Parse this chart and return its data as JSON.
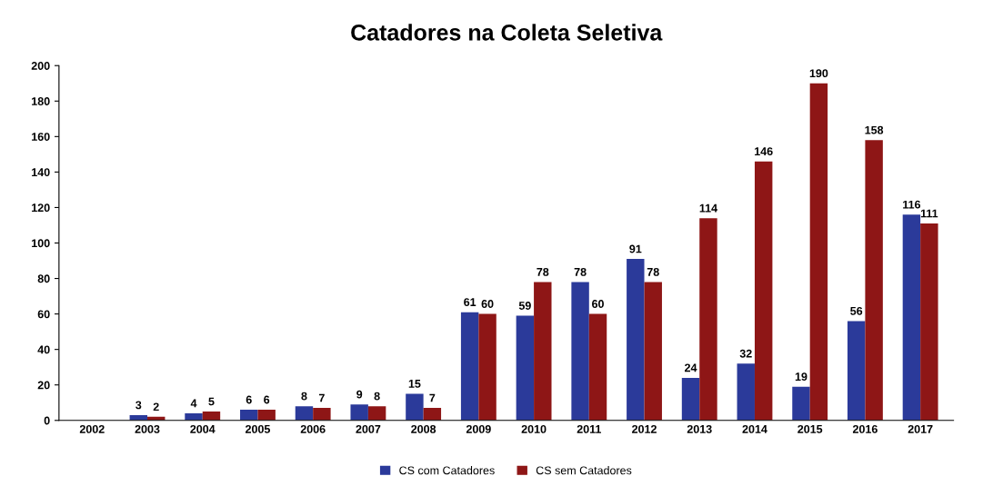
{
  "chart_data": {
    "type": "bar",
    "title": "Catadores na Coleta Seletiva",
    "categories": [
      "2002",
      "2003",
      "2004",
      "2005",
      "2006",
      "2007",
      "2008",
      "2009",
      "2010",
      "2011",
      "2012",
      "2013",
      "2014",
      "2015",
      "2016",
      "2017"
    ],
    "series": [
      {
        "name": "CS com Catadores",
        "color": "#2b3a9a",
        "values": [
          null,
          3,
          4,
          6,
          8,
          9,
          15,
          61,
          59,
          78,
          91,
          24,
          32,
          19,
          56,
          116
        ]
      },
      {
        "name": "CS sem Catadores",
        "color": "#8e1616",
        "values": [
          null,
          2,
          5,
          6,
          7,
          8,
          7,
          60,
          78,
          60,
          78,
          114,
          146,
          190,
          158,
          111
        ]
      }
    ],
    "ylim": [
      0,
      200
    ],
    "yticks": [
      0,
      20,
      40,
      60,
      80,
      100,
      120,
      140,
      160,
      180,
      200
    ],
    "data_labels": true,
    "grid": false,
    "legend": "bottom"
  }
}
